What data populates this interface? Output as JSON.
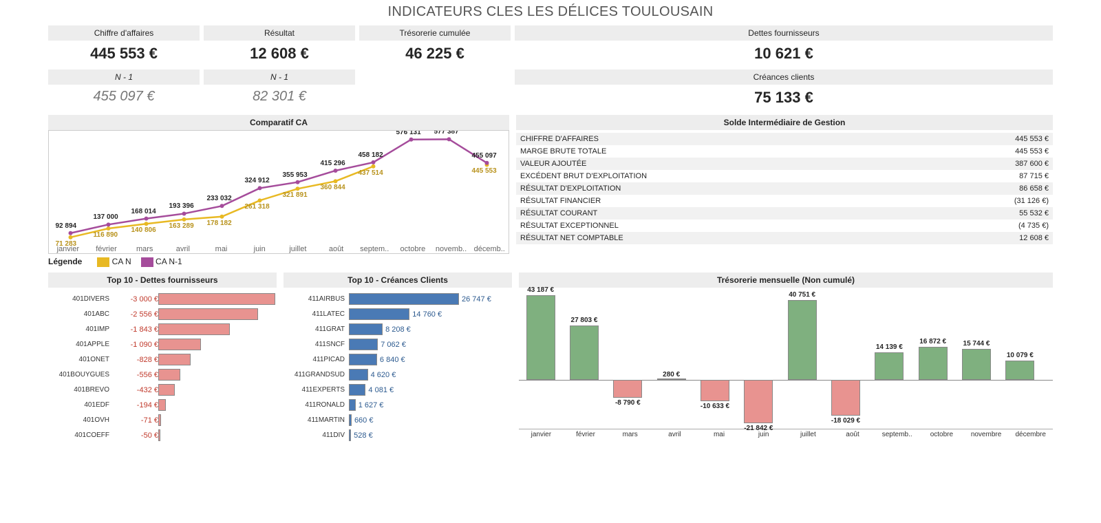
{
  "title": "INDICATEURS CLES LES DÉLICES TOULOUSAIN",
  "kpi": {
    "ca": {
      "label": "Chiffre d'affaires",
      "value": "445 553 €",
      "n1label": "N - 1",
      "n1value": "455 097 €"
    },
    "resultat": {
      "label": "Résultat",
      "value": "12 608 €",
      "n1label": "N - 1",
      "n1value": "82 301 €"
    },
    "treso": {
      "label": "Trésorerie cumulée",
      "value": "46 225 €"
    },
    "dettes": {
      "label": "Dettes fournisseurs",
      "value": "10 621 €"
    },
    "creances": {
      "label": "Créances clients",
      "value": "75 133 €"
    }
  },
  "comparatif": {
    "title": "Comparatif CA",
    "months": [
      "janvier",
      "février",
      "mars",
      "avril",
      "mai",
      "juin",
      "juillet",
      "août",
      "septem..",
      "octobre",
      "novemb..",
      "décemb.."
    ],
    "legend_title": "Légende",
    "series": [
      {
        "name": "CA N",
        "color": "#e8b923",
        "values": [
          71283,
          116890,
          140806,
          163289,
          178182,
          261318,
          321891,
          360844,
          437514,
          null,
          null,
          445553
        ],
        "labels": [
          "71 283",
          "116 890",
          "140 806",
          "163 289",
          "178 182",
          "261 318",
          "321 891",
          "360 844",
          "437 514",
          "",
          "",
          "445 553"
        ]
      },
      {
        "name": "CA N-1",
        "color": "#a54c9b",
        "values": [
          92894,
          137000,
          168014,
          193396,
          233032,
          324912,
          355953,
          415296,
          458182,
          576131,
          577387,
          455097
        ],
        "labels": [
          "92 894",
          "137 000",
          "168 014",
          "193 396",
          "233 032",
          "324 912",
          "355 953",
          "415 296",
          "458 182",
          "576 131",
          "577 387",
          "455 097"
        ]
      }
    ],
    "ylim": [
      60000,
      600000
    ]
  },
  "sig": {
    "title": "Solde Intermédiaire de Gestion",
    "rows": [
      [
        "CHIFFRE D'AFFAIRES",
        "445 553 €"
      ],
      [
        "MARGE BRUTE TOTALE",
        "445 553 €"
      ],
      [
        "VALEUR AJOUTÉE",
        "387 600 €"
      ],
      [
        "EXCÉDENT BRUT D'EXPLOITATION",
        "87 715 €"
      ],
      [
        "RÉSULTAT D'EXPLOITATION",
        "86 658 €"
      ],
      [
        "RÉSULTAT FINANCIER",
        "(31 126 €)"
      ],
      [
        "RÉSULTAT COURANT",
        "55 532 €"
      ],
      [
        "RÉSULTAT EXCEPTIONNEL",
        "(4 735 €)"
      ],
      [
        "RÉSULTAT NET COMPTABLE",
        "12 608 €"
      ]
    ]
  },
  "fourn": {
    "title": "Top 10 - Dettes fournisseurs",
    "color_bar": "#e89390",
    "color_text": "#c0392b",
    "max": 3000,
    "rows": [
      [
        "401DIVERS",
        "-3 000 €",
        3000
      ],
      [
        "401ABC",
        "-2 556 €",
        2556
      ],
      [
        "401IMP",
        "-1 843 €",
        1843
      ],
      [
        "401APPLE",
        "-1 090 €",
        1090
      ],
      [
        "401ONET",
        "-828 €",
        828
      ],
      [
        "401BOUYGUES",
        "-556 €",
        556
      ],
      [
        "401BREVO",
        "-432 €",
        432
      ],
      [
        "401EDF",
        "-194 €",
        194
      ],
      [
        "401OVH",
        "-71 €",
        71
      ],
      [
        "401COEFF",
        "-50 €",
        50
      ]
    ]
  },
  "cli": {
    "title": "Top 10 - Créances Clients",
    "color_bar": "#4a7ab5",
    "color_text": "#2c5a8f",
    "max": 26747,
    "rows": [
      [
        "411AIRBUS",
        "26 747 €",
        26747
      ],
      [
        "411LATEC",
        "14 760 €",
        14760
      ],
      [
        "411GRAT",
        "8 208 €",
        8208
      ],
      [
        "411SNCF",
        "7 062 €",
        7062
      ],
      [
        "411PICAD",
        "6 840 €",
        6840
      ],
      [
        "411GRANDSUD",
        "4 620 €",
        4620
      ],
      [
        "411EXPERTS",
        "4 081 €",
        4081
      ],
      [
        "411RONALD",
        "1 627 €",
        1627
      ],
      [
        "411MARTIN",
        "660 €",
        660
      ],
      [
        "411DIV",
        "528 €",
        528
      ]
    ]
  },
  "tresomens": {
    "title": "Trésorerie mensuelle (Non cumulé)",
    "months": [
      "janvier",
      "février",
      "mars",
      "avril",
      "mai",
      "juin",
      "juillet",
      "août",
      "septemb..",
      "octobre",
      "novembre",
      "décembre"
    ],
    "values": [
      43187,
      27803,
      -8790,
      280,
      -10633,
      -21842,
      40751,
      -18029,
      14139,
      16872,
      15744,
      10079
    ],
    "labels": [
      "43 187 €",
      "27 803 €",
      "-8 790 €",
      "280 €",
      "-10 633 €",
      "-21 842 €",
      "40 751 €",
      "-18 029 €",
      "14 139 €",
      "16 872 €",
      "15 744 €",
      "10 079 €"
    ],
    "pos_color": "#7fb07f",
    "neg_color": "#e89390",
    "ylim": [
      -25000,
      45000
    ]
  }
}
